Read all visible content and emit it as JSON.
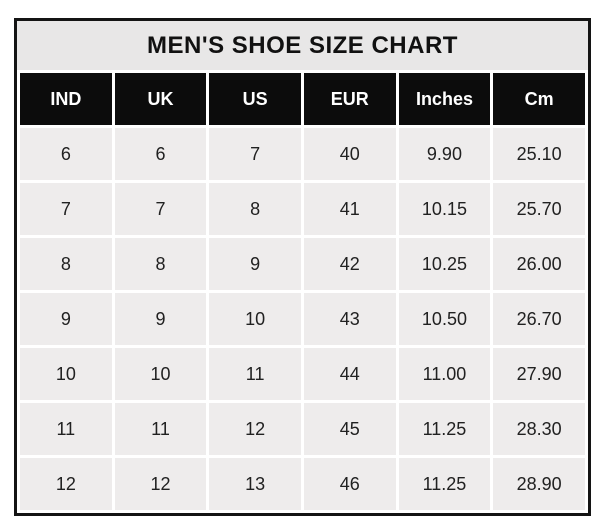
{
  "table": {
    "title": "MEN'S SHOE SIZE CHART",
    "columns": [
      "IND",
      "UK",
      "US",
      "EUR",
      "Inches",
      "Cm"
    ],
    "rows": [
      [
        "6",
        "6",
        "7",
        "40",
        "9.90",
        "25.10"
      ],
      [
        "7",
        "7",
        "8",
        "41",
        "10.15",
        "25.70"
      ],
      [
        "8",
        "8",
        "9",
        "42",
        "10.25",
        "26.00"
      ],
      [
        "9",
        "9",
        "10",
        "43",
        "10.50",
        "26.70"
      ],
      [
        "10",
        "10",
        "11",
        "44",
        "11.00",
        "27.90"
      ],
      [
        "11",
        "11",
        "12",
        "45",
        "11.25",
        "28.30"
      ],
      [
        "12",
        "12",
        "13",
        "46",
        "11.25",
        "28.90"
      ]
    ]
  },
  "colors": {
    "page_bg": "#ffffff",
    "border": "#141414",
    "title_bg": "#e8e7e7",
    "title_text": "#111111",
    "header_bg": "#0c0c0c",
    "header_text": "#ffffff",
    "cell_bg": "#eeecec",
    "cell_text": "#212121",
    "grid": "#ffffff"
  }
}
